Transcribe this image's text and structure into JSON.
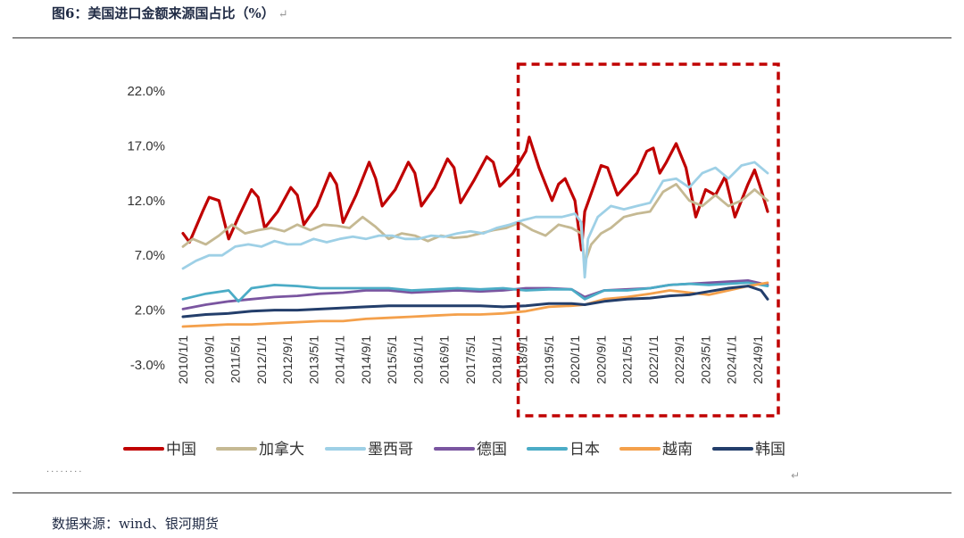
{
  "figure": {
    "title": "图6：美国进口金额来源国占比（%）",
    "return_mark": "↵",
    "dots": "········",
    "source": "数据来源：wind、银河期货"
  },
  "chart_data": {
    "type": "line",
    "title": "美国进口金额来源国占比（%）",
    "xlabel": "",
    "ylabel": "",
    "ylim": [
      -3.0,
      22.0
    ],
    "yticks": [
      "22.0%",
      "17.0%",
      "12.0%",
      "7.0%",
      "2.0%",
      "-3.0%"
    ],
    "ytick_values": [
      22,
      17,
      12,
      7,
      2,
      -3
    ],
    "xlim": [
      "2010/1",
      "2024/12"
    ],
    "xticks": [
      "2010/1/1",
      "2010/9/1",
      "2011/5/1",
      "2012/1/1",
      "2012/9/1",
      "2013/5/1",
      "2014/1/1",
      "2014/9/1",
      "2015/5/1",
      "2016/1/1",
      "2016/9/1",
      "2017/5/1",
      "2018/1/1",
      "2018/9/1",
      "2019/5/1",
      "2020/1/1",
      "2020/9/1",
      "2021/5/1",
      "2022/1/1",
      "2022/9/1",
      "2023/5/1",
      "2024/1/1",
      "2024/9/1"
    ],
    "highlight": {
      "from": "2018/9",
      "to": "2024/12",
      "color": "#c00000",
      "style": "dashed"
    },
    "legend_position": "bottom",
    "series": [
      {
        "name": "中国",
        "color": "#c00000",
        "width": 3.2,
        "points": [
          [
            "2010/1",
            9.0
          ],
          [
            "2010/3",
            8.2
          ],
          [
            "2010/7",
            11.0
          ],
          [
            "2010/9",
            12.3
          ],
          [
            "2010/12",
            12.0
          ],
          [
            "2011/3",
            8.5
          ],
          [
            "2011/6",
            10.5
          ],
          [
            "2011/10",
            13.0
          ],
          [
            "2011/12",
            12.3
          ],
          [
            "2012/2",
            9.5
          ],
          [
            "2012/6",
            11.0
          ],
          [
            "2012/10",
            13.2
          ],
          [
            "2012/12",
            12.5
          ],
          [
            "2013/2",
            9.8
          ],
          [
            "2013/6",
            11.5
          ],
          [
            "2013/10",
            14.5
          ],
          [
            "2013/12",
            13.5
          ],
          [
            "2014/2",
            10.0
          ],
          [
            "2014/6",
            12.5
          ],
          [
            "2014/10",
            15.5
          ],
          [
            "2014/12",
            14.0
          ],
          [
            "2015/2",
            11.5
          ],
          [
            "2015/6",
            13.0
          ],
          [
            "2015/10",
            15.5
          ],
          [
            "2015/12",
            14.5
          ],
          [
            "2016/2",
            11.5
          ],
          [
            "2016/6",
            13.2
          ],
          [
            "2016/10",
            15.8
          ],
          [
            "2016/12",
            15.0
          ],
          [
            "2017/2",
            11.8
          ],
          [
            "2017/6",
            13.8
          ],
          [
            "2017/10",
            16.0
          ],
          [
            "2017/12",
            15.5
          ],
          [
            "2018/2",
            13.3
          ],
          [
            "2018/6",
            14.5
          ],
          [
            "2018/10",
            16.5
          ],
          [
            "2018/11",
            17.8
          ],
          [
            "2019/2",
            15.0
          ],
          [
            "2019/6",
            12.0
          ],
          [
            "2019/8",
            13.5
          ],
          [
            "2019/10",
            14.0
          ],
          [
            "2020/1",
            12.0
          ],
          [
            "2020/3",
            7.5
          ],
          [
            "2020/4",
            11.0
          ],
          [
            "2020/7",
            13.5
          ],
          [
            "2020/9",
            15.2
          ],
          [
            "2020/11",
            15.0
          ],
          [
            "2021/2",
            12.5
          ],
          [
            "2021/5",
            13.5
          ],
          [
            "2021/8",
            14.5
          ],
          [
            "2021/11",
            16.5
          ],
          [
            "2022/1",
            16.8
          ],
          [
            "2022/3",
            14.5
          ],
          [
            "2022/5",
            15.5
          ],
          [
            "2022/8",
            17.2
          ],
          [
            "2022/11",
            15.0
          ],
          [
            "2023/2",
            10.5
          ],
          [
            "2023/5",
            13.0
          ],
          [
            "2023/8",
            12.5
          ],
          [
            "2023/11",
            14.2
          ],
          [
            "2024/2",
            10.5
          ],
          [
            "2024/6",
            13.5
          ],
          [
            "2024/8",
            14.8
          ],
          [
            "2024/10",
            13.0
          ],
          [
            "2024/12",
            11.0
          ]
        ]
      },
      {
        "name": "加拿大",
        "color": "#c5b993",
        "width": 2.8,
        "points": [
          [
            "2010/1",
            7.8
          ],
          [
            "2010/4",
            8.5
          ],
          [
            "2010/8",
            8.0
          ],
          [
            "2010/12",
            8.8
          ],
          [
            "2011/4",
            9.8
          ],
          [
            "2011/8",
            9.0
          ],
          [
            "2011/12",
            9.3
          ],
          [
            "2012/4",
            9.5
          ],
          [
            "2012/8",
            9.2
          ],
          [
            "2012/12",
            9.8
          ],
          [
            "2013/4",
            9.3
          ],
          [
            "2013/8",
            9.8
          ],
          [
            "2013/12",
            9.7
          ],
          [
            "2014/4",
            9.5
          ],
          [
            "2014/8",
            10.5
          ],
          [
            "2014/12",
            9.6
          ],
          [
            "2015/4",
            8.5
          ],
          [
            "2015/8",
            9.0
          ],
          [
            "2015/12",
            8.8
          ],
          [
            "2016/4",
            8.3
          ],
          [
            "2016/8",
            8.8
          ],
          [
            "2016/12",
            8.6
          ],
          [
            "2017/4",
            8.7
          ],
          [
            "2017/8",
            9.0
          ],
          [
            "2017/12",
            9.3
          ],
          [
            "2018/4",
            9.5
          ],
          [
            "2018/8",
            10.0
          ],
          [
            "2018/12",
            9.3
          ],
          [
            "2019/4",
            8.8
          ],
          [
            "2019/8",
            9.8
          ],
          [
            "2019/12",
            9.5
          ],
          [
            "2020/3",
            9.0
          ],
          [
            "2020/4",
            6.3
          ],
          [
            "2020/6",
            8.0
          ],
          [
            "2020/9",
            9.0
          ],
          [
            "2020/12",
            9.5
          ],
          [
            "2021/4",
            10.5
          ],
          [
            "2021/8",
            10.8
          ],
          [
            "2021/12",
            11.0
          ],
          [
            "2022/4",
            12.8
          ],
          [
            "2022/8",
            13.5
          ],
          [
            "2022/12",
            12.0
          ],
          [
            "2023/4",
            11.5
          ],
          [
            "2023/8",
            12.5
          ],
          [
            "2023/12",
            11.5
          ],
          [
            "2024/4",
            12.0
          ],
          [
            "2024/8",
            13.0
          ],
          [
            "2024/12",
            12.0
          ]
        ]
      },
      {
        "name": "墨西哥",
        "color": "#9ed0e6",
        "width": 2.8,
        "points": [
          [
            "2010/1",
            5.8
          ],
          [
            "2010/5",
            6.5
          ],
          [
            "2010/9",
            7.0
          ],
          [
            "2011/1",
            7.0
          ],
          [
            "2011/5",
            7.8
          ],
          [
            "2011/9",
            8.0
          ],
          [
            "2012/1",
            7.8
          ],
          [
            "2012/5",
            8.3
          ],
          [
            "2012/9",
            8.0
          ],
          [
            "2013/1",
            8.0
          ],
          [
            "2013/5",
            8.5
          ],
          [
            "2013/9",
            8.2
          ],
          [
            "2014/1",
            8.5
          ],
          [
            "2014/5",
            8.7
          ],
          [
            "2014/9",
            8.5
          ],
          [
            "2015/1",
            8.8
          ],
          [
            "2015/5",
            8.8
          ],
          [
            "2015/9",
            8.5
          ],
          [
            "2016/1",
            8.5
          ],
          [
            "2016/5",
            8.8
          ],
          [
            "2016/9",
            8.7
          ],
          [
            "2017/1",
            9.0
          ],
          [
            "2017/5",
            9.2
          ],
          [
            "2017/9",
            9.0
          ],
          [
            "2018/1",
            9.5
          ],
          [
            "2018/5",
            9.8
          ],
          [
            "2018/9",
            10.2
          ],
          [
            "2019/1",
            10.5
          ],
          [
            "2019/5",
            10.5
          ],
          [
            "2019/9",
            10.5
          ],
          [
            "2020/1",
            10.8
          ],
          [
            "2020/3",
            10.0
          ],
          [
            "2020/4",
            5.0
          ],
          [
            "2020/5",
            8.5
          ],
          [
            "2020/8",
            10.5
          ],
          [
            "2020/12",
            11.5
          ],
          [
            "2021/4",
            11.2
          ],
          [
            "2021/8",
            11.5
          ],
          [
            "2021/12",
            11.8
          ],
          [
            "2022/4",
            13.8
          ],
          [
            "2022/8",
            14.0
          ],
          [
            "2022/12",
            13.2
          ],
          [
            "2023/4",
            14.5
          ],
          [
            "2023/8",
            15.0
          ],
          [
            "2023/12",
            14.0
          ],
          [
            "2024/4",
            15.2
          ],
          [
            "2024/8",
            15.5
          ],
          [
            "2024/12",
            14.5
          ]
        ]
      },
      {
        "name": "德国",
        "color": "#7a55a0",
        "width": 2.8,
        "points": [
          [
            "2010/1",
            2.1
          ],
          [
            "2010/8",
            2.5
          ],
          [
            "2011/3",
            2.8
          ],
          [
            "2011/10",
            3.0
          ],
          [
            "2012/5",
            3.2
          ],
          [
            "2012/12",
            3.3
          ],
          [
            "2013/7",
            3.5
          ],
          [
            "2014/2",
            3.6
          ],
          [
            "2014/9",
            3.8
          ],
          [
            "2015/4",
            3.8
          ],
          [
            "2015/11",
            3.6
          ],
          [
            "2016/6",
            3.7
          ],
          [
            "2017/1",
            3.8
          ],
          [
            "2017/8",
            3.7
          ],
          [
            "2018/3",
            3.8
          ],
          [
            "2018/10",
            4.0
          ],
          [
            "2019/5",
            4.0
          ],
          [
            "2019/12",
            3.9
          ],
          [
            "2020/4",
            3.2
          ],
          [
            "2020/10",
            3.8
          ],
          [
            "2021/5",
            3.9
          ],
          [
            "2021/12",
            4.0
          ],
          [
            "2022/6",
            4.3
          ],
          [
            "2022/12",
            4.4
          ],
          [
            "2023/6",
            4.5
          ],
          [
            "2023/12",
            4.6
          ],
          [
            "2024/6",
            4.7
          ],
          [
            "2024/12",
            4.3
          ]
        ]
      },
      {
        "name": "日本",
        "color": "#4bacc6",
        "width": 2.8,
        "points": [
          [
            "2010/1",
            3.0
          ],
          [
            "2010/8",
            3.5
          ],
          [
            "2011/3",
            3.8
          ],
          [
            "2011/6",
            2.8
          ],
          [
            "2011/10",
            4.0
          ],
          [
            "2012/5",
            4.3
          ],
          [
            "2012/12",
            4.2
          ],
          [
            "2013/7",
            4.0
          ],
          [
            "2014/2",
            4.0
          ],
          [
            "2014/9",
            4.0
          ],
          [
            "2015/4",
            4.0
          ],
          [
            "2015/11",
            3.8
          ],
          [
            "2016/6",
            3.9
          ],
          [
            "2017/1",
            4.0
          ],
          [
            "2017/8",
            3.9
          ],
          [
            "2018/3",
            4.0
          ],
          [
            "2018/10",
            3.8
          ],
          [
            "2019/5",
            3.9
          ],
          [
            "2019/12",
            3.9
          ],
          [
            "2020/4",
            3.0
          ],
          [
            "2020/10",
            3.8
          ],
          [
            "2021/5",
            3.8
          ],
          [
            "2021/12",
            4.0
          ],
          [
            "2022/6",
            4.3
          ],
          [
            "2022/12",
            4.4
          ],
          [
            "2023/6",
            4.3
          ],
          [
            "2023/12",
            4.4
          ],
          [
            "2024/6",
            4.5
          ],
          [
            "2024/12",
            4.2
          ]
        ]
      },
      {
        "name": "越南",
        "color": "#f4a04b",
        "width": 2.8,
        "points": [
          [
            "2010/1",
            0.5
          ],
          [
            "2010/8",
            0.6
          ],
          [
            "2011/3",
            0.7
          ],
          [
            "2011/10",
            0.7
          ],
          [
            "2012/5",
            0.8
          ],
          [
            "2012/12",
            0.9
          ],
          [
            "2013/7",
            1.0
          ],
          [
            "2014/2",
            1.0
          ],
          [
            "2014/9",
            1.2
          ],
          [
            "2015/4",
            1.3
          ],
          [
            "2015/11",
            1.4
          ],
          [
            "2016/6",
            1.5
          ],
          [
            "2017/1",
            1.6
          ],
          [
            "2017/8",
            1.6
          ],
          [
            "2018/3",
            1.7
          ],
          [
            "2018/10",
            1.9
          ],
          [
            "2019/5",
            2.3
          ],
          [
            "2019/12",
            2.4
          ],
          [
            "2020/4",
            2.5
          ],
          [
            "2020/10",
            3.0
          ],
          [
            "2021/5",
            3.2
          ],
          [
            "2021/12",
            3.5
          ],
          [
            "2022/6",
            3.8
          ],
          [
            "2022/12",
            3.6
          ],
          [
            "2023/6",
            3.4
          ],
          [
            "2023/12",
            3.8
          ],
          [
            "2024/6",
            4.2
          ],
          [
            "2024/12",
            4.5
          ]
        ]
      },
      {
        "name": "韩国",
        "color": "#233e6b",
        "width": 3.0,
        "points": [
          [
            "2010/1",
            1.4
          ],
          [
            "2010/8",
            1.6
          ],
          [
            "2011/3",
            1.7
          ],
          [
            "2011/10",
            1.9
          ],
          [
            "2012/5",
            2.0
          ],
          [
            "2012/12",
            2.0
          ],
          [
            "2013/7",
            2.1
          ],
          [
            "2014/2",
            2.2
          ],
          [
            "2014/9",
            2.3
          ],
          [
            "2015/4",
            2.4
          ],
          [
            "2015/11",
            2.4
          ],
          [
            "2016/6",
            2.4
          ],
          [
            "2017/1",
            2.4
          ],
          [
            "2017/8",
            2.4
          ],
          [
            "2018/3",
            2.3
          ],
          [
            "2018/10",
            2.4
          ],
          [
            "2019/5",
            2.6
          ],
          [
            "2019/12",
            2.6
          ],
          [
            "2020/4",
            2.5
          ],
          [
            "2020/10",
            2.8
          ],
          [
            "2021/5",
            3.0
          ],
          [
            "2021/12",
            3.1
          ],
          [
            "2022/6",
            3.3
          ],
          [
            "2022/12",
            3.4
          ],
          [
            "2023/6",
            3.7
          ],
          [
            "2023/12",
            4.0
          ],
          [
            "2024/6",
            4.2
          ],
          [
            "2024/10",
            3.8
          ],
          [
            "2024/12",
            3.0
          ]
        ]
      }
    ]
  }
}
